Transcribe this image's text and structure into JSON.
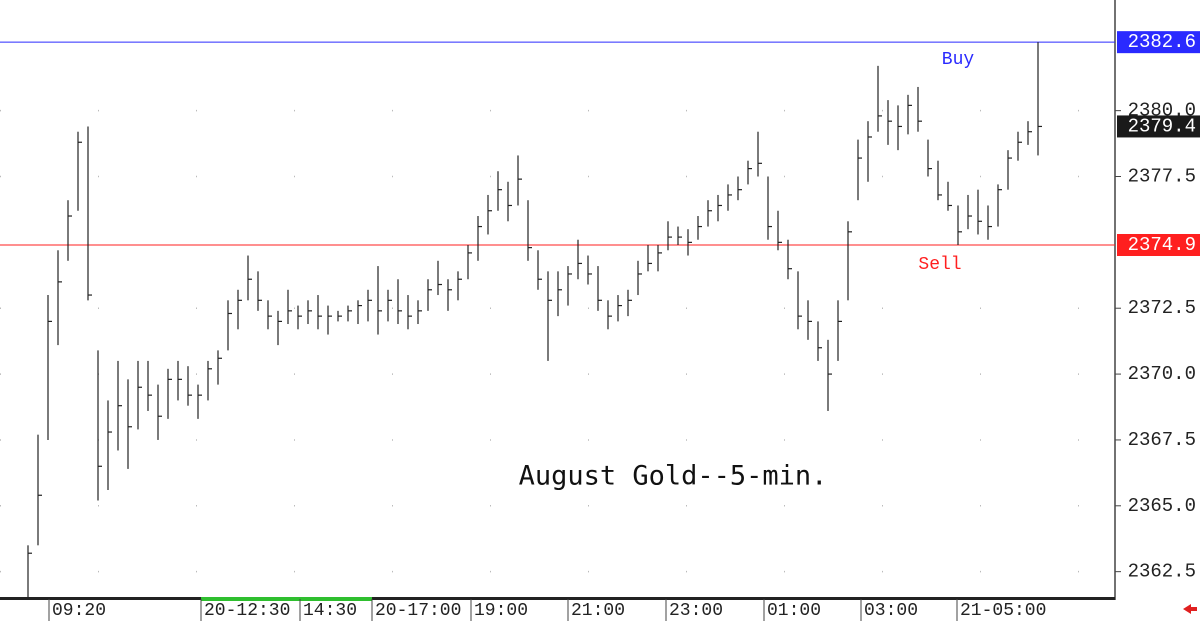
{
  "chart_data": {
    "type": "ohlc",
    "title": "August Gold--5-min.",
    "high": [
      2363.5,
      2367.7,
      2373,
      2374.7,
      2376.6,
      2379.2,
      2379.4,
      2370.9,
      2369,
      2370.5,
      2369.8,
      2370.5,
      2370.5,
      2369.6,
      2370.2,
      2370.5,
      2370.3,
      2369.6,
      2370.5,
      2370.9,
      2372.8,
      2373.2,
      2374.5,
      2373.9,
      2372.8,
      2372.4,
      2373.2,
      2372.6,
      2372.8,
      2373,
      2372.6,
      2372.4,
      2372.6,
      2372.8,
      2373.2,
      2374.1,
      2373.2,
      2373.6,
      2373,
      2372.8,
      2373.6,
      2374.3,
      2373.6,
      2373.9,
      2374.9,
      2376,
      2376.8,
      2377.7,
      2377.3,
      2378.3,
      2376.6,
      2374.7,
      2373.9,
      2373.9,
      2374.1,
      2375.1,
      2374.5,
      2374.1,
      2372.8,
      2373,
      2373.2,
      2374.3,
      2374.9,
      2374.9,
      2375.8,
      2375.6,
      2375.5,
      2376,
      2376.6,
      2376.8,
      2377.2,
      2377.5,
      2378.1,
      2379.2,
      2377.5,
      2376.2,
      2375.1,
      2373.9,
      2372.8,
      2372,
      2371.3,
      2372.8,
      2375.8,
      2378.9,
      2379.6,
      2381.7,
      2380.4,
      2380.2,
      2380.6,
      2380.9,
      2378.9,
      2378.1,
      2377.3,
      2376.4,
      2376.8,
      2377,
      2376.4,
      2377.2,
      2378.5,
      2379.2,
      2379.6,
      2382.6
    ],
    "low": [
      2361.5,
      2363.5,
      2367.5,
      2371.1,
      2374.3,
      2376.2,
      2372.8,
      2365.2,
      2365.6,
      2367.1,
      2366.4,
      2367.9,
      2368.6,
      2367.5,
      2368.3,
      2369,
      2368.8,
      2368.3,
      2369,
      2369.6,
      2370.9,
      2371.7,
      2372.8,
      2372.4,
      2371.7,
      2371.1,
      2371.9,
      2371.7,
      2371.9,
      2371.7,
      2371.5,
      2372,
      2372,
      2371.9,
      2372,
      2371.5,
      2372,
      2371.9,
      2371.7,
      2371.9,
      2372.4,
      2373,
      2372.4,
      2372.8,
      2373.6,
      2374.3,
      2375.3,
      2376.2,
      2375.8,
      2376.4,
      2374.3,
      2373.2,
      2370.5,
      2372.2,
      2372.6,
      2373.6,
      2373.4,
      2372.4,
      2371.7,
      2372,
      2372.2,
      2373,
      2373.9,
      2373.9,
      2374.7,
      2374.9,
      2374.5,
      2375.1,
      2375.6,
      2375.8,
      2376.2,
      2376.6,
      2377.2,
      2377.5,
      2375.1,
      2374.7,
      2373.6,
      2371.7,
      2371.3,
      2370.5,
      2368.6,
      2370.5,
      2372.8,
      2376.6,
      2377.3,
      2379.2,
      2378.7,
      2378.5,
      2379.1,
      2379.2,
      2377.5,
      2376.6,
      2376.2,
      2374.9,
      2375.5,
      2375.3,
      2375.1,
      2375.6,
      2377,
      2378.1,
      2378.7,
      2378.3
    ],
    "close": [
      2363.2,
      2365.4,
      2372,
      2373.5,
      2376,
      2378.8,
      2373,
      2366.5,
      2367.8,
      2368.8,
      2368,
      2369.5,
      2369.2,
      2368.4,
      2369.8,
      2369.8,
      2369.2,
      2369.2,
      2370.2,
      2370.6,
      2372.3,
      2372.8,
      2373.6,
      2372.8,
      2372.2,
      2372,
      2372.4,
      2372.2,
      2372.4,
      2372.2,
      2372.2,
      2372.2,
      2372.4,
      2372.6,
      2372.8,
      2372.4,
      2372.8,
      2372.4,
      2372.2,
      2372.4,
      2373.2,
      2373.4,
      2373.2,
      2373.6,
      2374.6,
      2375.6,
      2376.2,
      2377,
      2376.4,
      2377.4,
      2374.8,
      2373.6,
      2372.8,
      2373.2,
      2373.8,
      2374.2,
      2373.8,
      2372.8,
      2372.2,
      2372.6,
      2372.8,
      2373.8,
      2374.2,
      2374.6,
      2375.2,
      2375.2,
      2375,
      2375.6,
      2376.2,
      2376.4,
      2376.8,
      2377,
      2377.8,
      2378,
      2375.6,
      2375,
      2374,
      2372.2,
      2372,
      2371,
      2370,
      2372,
      2375.4,
      2378.2,
      2379,
      2379.8,
      2379.6,
      2379.4,
      2380.2,
      2379.6,
      2377.8,
      2376.8,
      2376.4,
      2375.4,
      2376,
      2375.8,
      2375.6,
      2377,
      2378.2,
      2378.8,
      2379.2,
      2379.4
    ],
    "color": "#222222",
    "xlim": [
      -2.8,
      108.7
    ],
    "xticks": [
      {
        "value": 2.1,
        "label": "09:20"
      },
      {
        "value": 17.3,
        "label": "20-12:30"
      },
      {
        "value": 27.2,
        "label": "14:30"
      },
      {
        "value": 34.4,
        "label": "20-17:00"
      },
      {
        "value": 44.3,
        "label": "19:00"
      },
      {
        "value": 54,
        "label": "21:00"
      },
      {
        "value": 63.8,
        "label": "23:00"
      },
      {
        "value": 73.6,
        "label": "01:00"
      },
      {
        "value": 83.3,
        "label": "03:00"
      },
      {
        "value": 92.9,
        "label": "21-05:00"
      }
    ],
    "ylim": [
      2361.5,
      2384.2
    ],
    "yticks": [
      2362.5,
      {
        "value": 2365,
        "label": "2365.0"
      },
      2367.5,
      {
        "value": 2370,
        "label": "2370.0"
      },
      2372.5,
      2377.5,
      {
        "value": 2380,
        "label": "2380.0"
      }
    ],
    "grid": true,
    "levels": [
      {
        "label": "Buy",
        "value": 2382.6,
        "color": "#2a2aff"
      },
      {
        "label": "Sell",
        "value": 2374.9,
        "color": "#ff1f1f"
      }
    ],
    "last": 2379.4
  }
}
